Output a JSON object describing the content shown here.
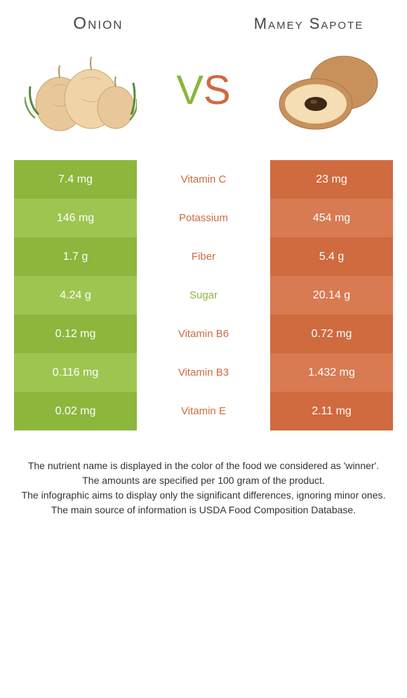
{
  "colors": {
    "left": "#8cb63c",
    "left_alt": "#9dc651",
    "right": "#d06a3f",
    "right_alt": "#d87a52",
    "text": "#333333"
  },
  "left_food": {
    "name": "Onion"
  },
  "right_food": {
    "name": "Mamey Sapote"
  },
  "vs": {
    "v": "V",
    "s": "S"
  },
  "rows": [
    {
      "left": "7.4 mg",
      "label": "Vitamin C",
      "right": "23 mg",
      "winner": "right"
    },
    {
      "left": "146 mg",
      "label": "Potassium",
      "right": "454 mg",
      "winner": "right"
    },
    {
      "left": "1.7 g",
      "label": "Fiber",
      "right": "5.4 g",
      "winner": "right"
    },
    {
      "left": "4.24 g",
      "label": "Sugar",
      "right": "20.14 g",
      "winner": "left"
    },
    {
      "left": "0.12 mg",
      "label": "Vitamin B6",
      "right": "0.72 mg",
      "winner": "right"
    },
    {
      "left": "0.116 mg",
      "label": "Vitamin B3",
      "right": "1.432 mg",
      "winner": "right"
    },
    {
      "left": "0.02 mg",
      "label": "Vitamin E",
      "right": "2.11 mg",
      "winner": "right"
    }
  ],
  "footnotes": [
    "The nutrient name is displayed in the color of the food we considered as 'winner'.",
    "The amounts are specified per 100 gram of the product.",
    "The infographic aims to display only the significant differences, ignoring minor ones.",
    "The main source of information is USDA Food Composition Database."
  ]
}
